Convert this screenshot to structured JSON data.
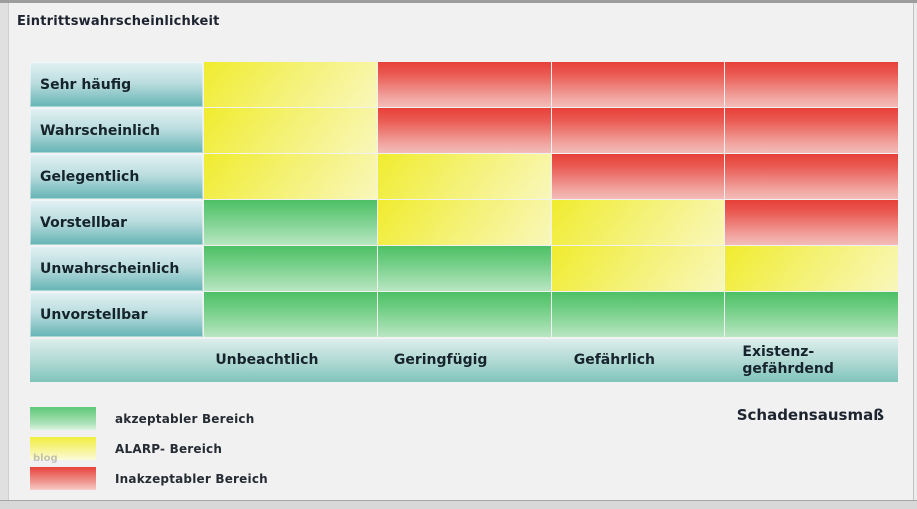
{
  "title": "Eintrittswahrscheinlichkeit",
  "x_axis_title": "Schadensausmaß",
  "watermark": "blog",
  "matrix": {
    "columns": [
      {
        "lines": [
          "Unbeachtlich"
        ]
      },
      {
        "lines": [
          "Geringfügig"
        ]
      },
      {
        "lines": [
          "Gefährlich"
        ]
      },
      {
        "lines": [
          "Existenz-",
          "gefährdend"
        ]
      }
    ],
    "rows": [
      {
        "label": "Sehr häufig",
        "cells": [
          "alarp",
          "risk",
          "risk",
          "risk"
        ]
      },
      {
        "label": "Wahrscheinlich",
        "cells": [
          "alarp",
          "risk",
          "risk",
          "risk"
        ]
      },
      {
        "label": "Gelegentlich",
        "cells": [
          "alarp",
          "alarp",
          "risk",
          "risk"
        ]
      },
      {
        "label": "Vorstellbar",
        "cells": [
          "accept",
          "alarp",
          "alarp",
          "risk"
        ]
      },
      {
        "label": "Unwahrscheinlich",
        "cells": [
          "accept",
          "accept",
          "alarp",
          "alarp"
        ]
      },
      {
        "label": "Unvorstellbar",
        "cells": [
          "accept",
          "accept",
          "accept",
          "accept"
        ]
      }
    ]
  },
  "legend": [
    {
      "level": "accept",
      "label": "akzeptabler Bereich",
      "color": "#4fc169"
    },
    {
      "level": "alarp",
      "label": "ALARP- Bereich",
      "color": "#f1ee35"
    },
    {
      "level": "risk",
      "label": "Inakzeptabler Bereich",
      "color": "#e8443d"
    }
  ],
  "chart_data": {
    "type": "heatmap",
    "title": "",
    "ylabel": "Eintrittswahrscheinlichkeit",
    "xlabel": "Schadensausmaß",
    "x_categories": [
      "Unbeachtlich",
      "Geringfügig",
      "Gefährlich",
      "Existenz-gefährdend"
    ],
    "y_categories": [
      "Sehr häufig",
      "Wahrscheinlich",
      "Gelegentlich",
      "Vorstellbar",
      "Unwahrscheinlich",
      "Unvorstellbar"
    ],
    "cells": [
      [
        "alarp",
        "risk",
        "risk",
        "risk"
      ],
      [
        "alarp",
        "risk",
        "risk",
        "risk"
      ],
      [
        "alarp",
        "alarp",
        "risk",
        "risk"
      ],
      [
        "accept",
        "alarp",
        "alarp",
        "risk"
      ],
      [
        "accept",
        "accept",
        "alarp",
        "alarp"
      ],
      [
        "accept",
        "accept",
        "accept",
        "accept"
      ]
    ],
    "level_labels": {
      "accept": "akzeptabler Bereich",
      "alarp": "ALARP- Bereich",
      "risk": "Inakzeptabler Bereich"
    },
    "colors": {
      "accept": "#4fc169",
      "alarp": "#f1ee35",
      "risk": "#e8443d",
      "row_header": "#64b3b3",
      "axis_bar": "#8cc9c2"
    },
    "legend_position": "bottom-left",
    "grid": false
  }
}
